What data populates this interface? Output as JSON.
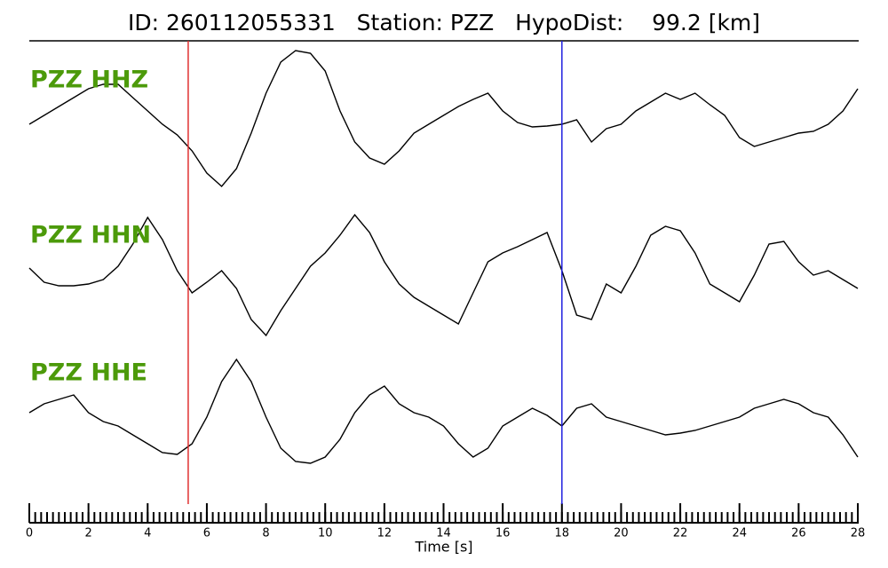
{
  "chart_data": {
    "type": "line",
    "title": "ID: 260112055331   Station: PZZ   HypoDist:    99.2 [km]",
    "x_label": "Time [s]",
    "xlim": [
      0,
      28
    ],
    "xticks": [
      0,
      2,
      4,
      6,
      8,
      10,
      12,
      14,
      16,
      18,
      20,
      22,
      24,
      26,
      28
    ],
    "minor_tick_step": 0.2,
    "label_color": "#4c9a0a",
    "markers": [
      {
        "x": 5.37,
        "color": "#e03030"
      },
      {
        "x": 18.0,
        "color": "#2020e0"
      }
    ],
    "x": [
      0,
      0.5,
      1,
      1.5,
      2,
      2.5,
      3,
      3.5,
      4,
      4.5,
      5,
      5.5,
      6,
      6.5,
      7,
      7.5,
      8,
      8.5,
      9,
      9.5,
      10,
      10.5,
      11,
      11.5,
      12,
      12.5,
      13,
      13.5,
      14,
      14.5,
      15,
      15.5,
      16,
      16.5,
      17,
      17.5,
      18,
      18.5,
      19,
      19.5,
      20,
      20.5,
      21,
      21.5,
      22,
      22.5,
      23,
      23.5,
      24,
      24.5,
      25,
      25.5,
      26,
      26.5,
      27,
      27.5,
      28
    ],
    "series": [
      {
        "name": "PZZ HHZ",
        "color": "#000000",
        "values": [
          -5,
          5,
          15,
          25,
          35,
          40,
          40,
          25,
          10,
          -5,
          -17,
          -35,
          -60,
          -75,
          -55,
          -15,
          30,
          65,
          78,
          75,
          55,
          10,
          -25,
          -43,
          -50,
          -35,
          -15,
          -5,
          5,
          15,
          23,
          30,
          10,
          -3,
          -8,
          -7,
          -5,
          0,
          -25,
          -10,
          -5,
          10,
          20,
          30,
          23,
          30,
          17,
          5,
          -20,
          -30,
          -25,
          -20,
          -15,
          -13,
          -5,
          10,
          35
        ]
      },
      {
        "name": "PZZ HHN",
        "color": "#000000",
        "values": [
          8,
          -8,
          -12,
          -12,
          -10,
          -5,
          10,
          35,
          65,
          40,
          5,
          -20,
          -8,
          5,
          -15,
          -50,
          -68,
          -40,
          -15,
          10,
          25,
          45,
          68,
          48,
          15,
          -10,
          -25,
          -35,
          -45,
          -55,
          -20,
          15,
          25,
          32,
          40,
          48,
          5,
          -45,
          -50,
          -10,
          -20,
          10,
          45,
          55,
          50,
          25,
          -10,
          -20,
          -30,
          0,
          35,
          38,
          15,
          0,
          5,
          -5,
          -15
        ]
      },
      {
        "name": "PZZ HHE",
        "color": "#000000",
        "values": [
          0,
          10,
          15,
          20,
          0,
          -10,
          -15,
          -25,
          -35,
          -45,
          -47,
          -35,
          -5,
          35,
          60,
          35,
          -5,
          -40,
          -55,
          -57,
          -50,
          -30,
          0,
          20,
          30,
          10,
          0,
          -5,
          -15,
          -35,
          -50,
          -40,
          -15,
          -5,
          5,
          -3,
          -15,
          5,
          10,
          -5,
          -10,
          -15,
          -20,
          -25,
          -23,
          -20,
          -15,
          -10,
          -5,
          5,
          10,
          15,
          10,
          0,
          -5,
          -25,
          -50
        ]
      }
    ]
  }
}
